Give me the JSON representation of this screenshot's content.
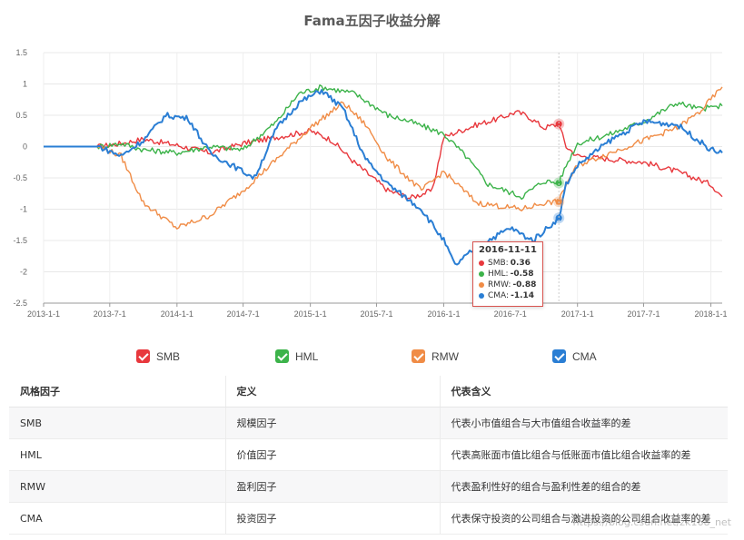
{
  "chart_data": {
    "type": "line",
    "title": "Fama五因子收益分解",
    "xlabel": "",
    "ylabel": "",
    "x_ticks": [
      "2013-1-1",
      "2013-7-1",
      "2014-1-1",
      "2014-7-1",
      "2015-1-1",
      "2015-7-1",
      "2016-1-1",
      "2016-7-1",
      "2017-1-1",
      "2017-7-1",
      "2018-1-1"
    ],
    "y_ticks": [
      "1.5",
      "1",
      "0.5",
      "0",
      "-0.5",
      "-1",
      "-1.5",
      "-2",
      "-2.5"
    ],
    "ylim": [
      -2.5,
      1.5
    ],
    "x_range": [
      "2013-01-01",
      "2018-02-01"
    ],
    "grid": true,
    "legend_position": "bottom",
    "series": [
      {
        "name": "SMB",
        "color": "#e8383d",
        "points": [
          [
            "2013-01-01",
            0
          ],
          [
            "2013-06-01",
            0
          ],
          [
            "2013-08-01",
            0.05
          ],
          [
            "2013-10-01",
            0.12
          ],
          [
            "2014-01-01",
            0.02
          ],
          [
            "2014-04-01",
            -0.1
          ],
          [
            "2014-07-01",
            0.05
          ],
          [
            "2014-10-01",
            0.15
          ],
          [
            "2015-01-01",
            0.25
          ],
          [
            "2015-03-01",
            0.1
          ],
          [
            "2015-05-01",
            -0.25
          ],
          [
            "2015-08-01",
            -0.7
          ],
          [
            "2015-10-01",
            -0.82
          ],
          [
            "2015-12-01",
            -0.7
          ],
          [
            "2016-01-01",
            0.15
          ],
          [
            "2016-02-01",
            0.22
          ],
          [
            "2016-04-01",
            0.35
          ],
          [
            "2016-06-01",
            0.45
          ],
          [
            "2016-07-15",
            0.55
          ],
          [
            "2016-08-15",
            0.5
          ],
          [
            "2016-10-01",
            0.3
          ],
          [
            "2016-11-11",
            0.36
          ],
          [
            "2016-12-01",
            0.0
          ],
          [
            "2017-01-01",
            -0.15
          ],
          [
            "2017-04-01",
            -0.2
          ],
          [
            "2017-07-01",
            -0.25
          ],
          [
            "2017-10-01",
            -0.4
          ],
          [
            "2018-01-01",
            -0.6
          ],
          [
            "2018-02-01",
            -0.8
          ]
        ]
      },
      {
        "name": "HML",
        "color": "#3cb34a",
        "points": [
          [
            "2013-01-01",
            0
          ],
          [
            "2013-06-01",
            0
          ],
          [
            "2013-08-01",
            0.05
          ],
          [
            "2013-10-01",
            -0.05
          ],
          [
            "2014-01-01",
            -0.1
          ],
          [
            "2014-04-01",
            0.0
          ],
          [
            "2014-07-01",
            -0.05
          ],
          [
            "2014-10-01",
            0.4
          ],
          [
            "2014-12-01",
            0.85
          ],
          [
            "2015-02-01",
            0.95
          ],
          [
            "2015-05-01",
            0.85
          ],
          [
            "2015-08-01",
            0.5
          ],
          [
            "2015-10-01",
            0.4
          ],
          [
            "2016-01-01",
            0.2
          ],
          [
            "2016-03-01",
            -0.15
          ],
          [
            "2016-05-01",
            -0.6
          ],
          [
            "2016-08-01",
            -0.8
          ],
          [
            "2016-10-01",
            -0.55
          ],
          [
            "2016-11-11",
            -0.58
          ],
          [
            "2016-12-01",
            -0.3
          ],
          [
            "2017-01-01",
            0.05
          ],
          [
            "2017-04-01",
            0.2
          ],
          [
            "2017-07-01",
            0.4
          ],
          [
            "2017-10-01",
            0.7
          ],
          [
            "2017-12-01",
            0.6
          ],
          [
            "2018-02-01",
            0.65
          ]
        ]
      },
      {
        "name": "RMW",
        "color": "#f08c46",
        "points": [
          [
            "2013-01-01",
            0
          ],
          [
            "2013-06-01",
            0
          ],
          [
            "2013-08-01",
            -0.15
          ],
          [
            "2013-10-01",
            -0.9
          ],
          [
            "2014-01-01",
            -1.3
          ],
          [
            "2014-04-01",
            -1.1
          ],
          [
            "2014-07-01",
            -0.7
          ],
          [
            "2014-10-01",
            -0.2
          ],
          [
            "2015-01-01",
            0.3
          ],
          [
            "2015-04-01",
            0.7
          ],
          [
            "2015-06-01",
            0.35
          ],
          [
            "2015-08-01",
            -0.2
          ],
          [
            "2015-11-01",
            -0.7
          ],
          [
            "2016-01-01",
            -0.4
          ],
          [
            "2016-04-01",
            -0.9
          ],
          [
            "2016-08-01",
            -1.0
          ],
          [
            "2016-10-01",
            -0.9
          ],
          [
            "2016-11-11",
            -0.88
          ],
          [
            "2016-12-01",
            -0.6
          ],
          [
            "2017-01-01",
            -0.3
          ],
          [
            "2017-04-01",
            -0.1
          ],
          [
            "2017-07-01",
            0.1
          ],
          [
            "2017-10-01",
            0.3
          ],
          [
            "2017-12-01",
            0.55
          ],
          [
            "2018-02-01",
            0.95
          ]
        ]
      },
      {
        "name": "CMA",
        "color": "#2a7ed4",
        "points": [
          [
            "2013-01-01",
            0
          ],
          [
            "2013-06-01",
            0
          ],
          [
            "2013-08-01",
            -0.15
          ],
          [
            "2013-10-01",
            0.1
          ],
          [
            "2013-12-01",
            0.5
          ],
          [
            "2014-02-01",
            0.45
          ],
          [
            "2014-04-01",
            -0.1
          ],
          [
            "2014-06-01",
            -0.3
          ],
          [
            "2014-08-01",
            -0.5
          ],
          [
            "2014-10-01",
            0.3
          ],
          [
            "2014-12-01",
            0.7
          ],
          [
            "2015-02-01",
            0.9
          ],
          [
            "2015-04-01",
            0.6
          ],
          [
            "2015-06-01",
            -0.2
          ],
          [
            "2015-08-01",
            -0.6
          ],
          [
            "2015-11-01",
            -1.0
          ],
          [
            "2016-01-01",
            -1.5
          ],
          [
            "2016-02-01",
            -1.9
          ],
          [
            "2016-04-01",
            -1.6
          ],
          [
            "2016-07-01",
            -1.3
          ],
          [
            "2016-09-01",
            -1.5
          ],
          [
            "2016-11-11",
            -1.14
          ],
          [
            "2016-12-01",
            -0.6
          ],
          [
            "2017-01-01",
            -0.3
          ],
          [
            "2017-04-01",
            0.1
          ],
          [
            "2017-07-01",
            0.4
          ],
          [
            "2017-10-01",
            0.35
          ],
          [
            "2018-01-01",
            -0.05
          ],
          [
            "2018-02-01",
            -0.1
          ]
        ]
      }
    ],
    "tooltip": {
      "date": "2016-11-11",
      "rows": [
        {
          "name": "SMB:",
          "value": "0.36",
          "color": "#e8383d"
        },
        {
          "name": "HML:",
          "value": "-0.58",
          "color": "#3cb34a"
        },
        {
          "name": "RMW:",
          "value": "-0.88",
          "color": "#f08c46"
        },
        {
          "name": "CMA:",
          "value": "-1.14",
          "color": "#2a7ed4"
        }
      ]
    }
  },
  "legend": [
    {
      "label": "SMB",
      "color": "#e8383d"
    },
    {
      "label": "HML",
      "color": "#3cb34a"
    },
    {
      "label": "RMW",
      "color": "#f08c46"
    },
    {
      "label": "CMA",
      "color": "#2a7ed4"
    }
  ],
  "table": {
    "headers": [
      "风格因子",
      "定义",
      "代表含义"
    ],
    "rows": [
      [
        "SMB",
        "规模因子",
        "代表小市值组合与大市值组合收益率的差"
      ],
      [
        "HML",
        "价值因子",
        "代表高账面市值比组合与低账面市值比组合收益率的差"
      ],
      [
        "RMW",
        "盈利因子",
        "代表盈利性好的组合与盈利性差的组合的差"
      ],
      [
        "CMA",
        "投资因子",
        "代表保守投资的公司组合与激进投资的公司组合收益率的差"
      ]
    ]
  },
  "watermark": "https://blog.csdn.net/zk168_net"
}
